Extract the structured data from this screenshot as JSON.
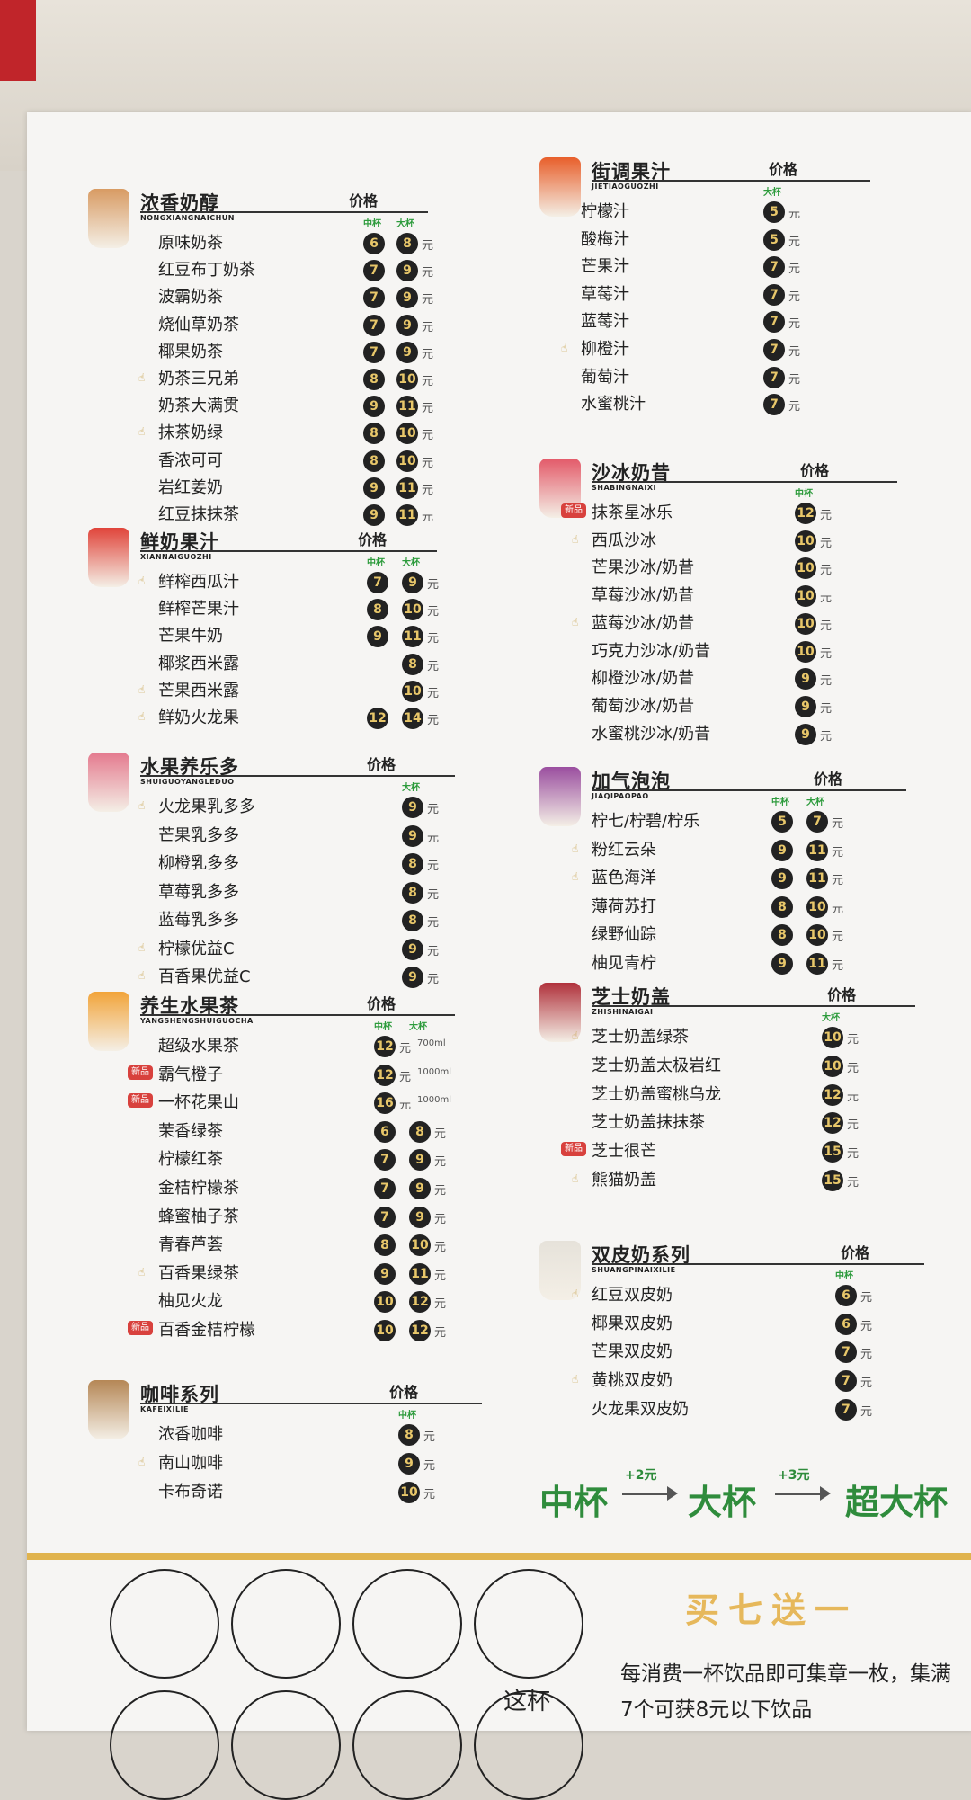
{
  "colors": {
    "badge_bg": "#222222",
    "badge_text": "#e8c76a",
    "green": "#2f8c3c",
    "gold": "#e0b34d",
    "new_tag": "#d8413d"
  },
  "sections": [
    {
      "id": "nongxiang",
      "title": "浓香奶醇",
      "pinyin": "NONGXIANGNAICHUN",
      "price_header": "价格",
      "sizes": [
        "中杯",
        "大杯"
      ],
      "thumb_color": "#d89b63",
      "items": [
        {
          "name": "原味奶茶",
          "prices": [
            "6",
            "8"
          ],
          "unit": "元"
        },
        {
          "name": "红豆布丁奶茶",
          "prices": [
            "7",
            "9"
          ],
          "unit": "元"
        },
        {
          "name": "波霸奶茶",
          "prices": [
            "7",
            "9"
          ],
          "unit": "元"
        },
        {
          "name": "烧仙草奶茶",
          "prices": [
            "7",
            "9"
          ],
          "unit": "元"
        },
        {
          "name": "椰果奶茶",
          "prices": [
            "7",
            "9"
          ],
          "unit": "元"
        },
        {
          "name": "奶茶三兄弟",
          "prices": [
            "8",
            "10"
          ],
          "unit": "元",
          "mark": "thumb"
        },
        {
          "name": "奶茶大满贯",
          "prices": [
            "9",
            "11"
          ],
          "unit": "元"
        },
        {
          "name": "抹茶奶绿",
          "prices": [
            "8",
            "10"
          ],
          "unit": "元",
          "mark": "thumb"
        },
        {
          "name": "香浓可可",
          "prices": [
            "8",
            "10"
          ],
          "unit": "元"
        },
        {
          "name": "岩红姜奶",
          "prices": [
            "9",
            "11"
          ],
          "unit": "元"
        },
        {
          "name": "红豆抹抹茶",
          "prices": [
            "9",
            "11"
          ],
          "unit": "元"
        }
      ]
    },
    {
      "id": "xiannai",
      "title": "鲜奶果汁",
      "pinyin": "XIANNAIGUOZHI",
      "price_header": "价格",
      "sizes": [
        "中杯",
        "大杯"
      ],
      "thumb_color": "#e0443a",
      "items": [
        {
          "name": "鲜榨西瓜汁",
          "prices": [
            "7",
            "9"
          ],
          "unit": "元",
          "mark": "thumb"
        },
        {
          "name": "鲜榨芒果汁",
          "prices": [
            "8",
            "10"
          ],
          "unit": "元"
        },
        {
          "name": "芒果牛奶",
          "prices": [
            "9",
            "11"
          ],
          "unit": "元"
        },
        {
          "name": "椰浆西米露",
          "prices": [
            "",
            "8"
          ],
          "unit": "元"
        },
        {
          "name": "芒果西米露",
          "prices": [
            "",
            "10"
          ],
          "unit": "元",
          "mark": "thumb"
        },
        {
          "name": "鲜奶火龙果",
          "prices": [
            "12",
            "14"
          ],
          "unit": "元",
          "mark": "thumb"
        }
      ]
    },
    {
      "id": "shuiguo",
      "title": "水果养乐多",
      "pinyin": "SHUIGUOYANGLEDUO",
      "price_header": "价格",
      "sizes": [
        "",
        "大杯"
      ],
      "thumb_color": "#e47a8e",
      "items": [
        {
          "name": "火龙果乳多多",
          "prices": [
            "",
            "9"
          ],
          "unit": "元",
          "mark": "thumb"
        },
        {
          "name": "芒果乳多多",
          "prices": [
            "",
            "9"
          ],
          "unit": "元"
        },
        {
          "name": "柳橙乳多多",
          "prices": [
            "",
            "8"
          ],
          "unit": "元"
        },
        {
          "name": "草莓乳多多",
          "prices": [
            "",
            "8"
          ],
          "unit": "元"
        },
        {
          "name": "蓝莓乳多多",
          "prices": [
            "",
            "8"
          ],
          "unit": "元"
        },
        {
          "name": "柠檬优益C",
          "prices": [
            "",
            "9"
          ],
          "unit": "元",
          "mark": "thumb"
        },
        {
          "name": "百香果优益C",
          "prices": [
            "",
            "9"
          ],
          "unit": "元",
          "mark": "thumb"
        }
      ]
    },
    {
      "id": "yangsheng",
      "title": "养生水果茶",
      "pinyin": "YANGSHENGSHUIGUOCHA",
      "price_header": "价格",
      "sizes": [
        "中杯",
        "大杯"
      ],
      "thumb_color": "#f2a43a",
      "items": [
        {
          "name": "超级水果茶",
          "prices": [
            "12",
            ""
          ],
          "unit": "元",
          "note": "700ml"
        },
        {
          "name": "霸气橙子",
          "prices": [
            "12",
            ""
          ],
          "unit": "元",
          "note": "1000ml",
          "mark": "new"
        },
        {
          "name": "一杯花果山",
          "prices": [
            "16",
            ""
          ],
          "unit": "元",
          "note": "1000ml",
          "mark": "new"
        },
        {
          "name": "茉香绿茶",
          "prices": [
            "6",
            "8"
          ],
          "unit": "元"
        },
        {
          "name": "柠檬红茶",
          "prices": [
            "7",
            "9"
          ],
          "unit": "元"
        },
        {
          "name": "金桔柠檬茶",
          "prices": [
            "7",
            "9"
          ],
          "unit": "元"
        },
        {
          "name": "蜂蜜柚子茶",
          "prices": [
            "7",
            "9"
          ],
          "unit": "元"
        },
        {
          "name": "青春芦荟",
          "prices": [
            "8",
            "10"
          ],
          "unit": "元"
        },
        {
          "name": "百香果绿茶",
          "prices": [
            "9",
            "11"
          ],
          "unit": "元",
          "mark": "thumb"
        },
        {
          "name": "柚见火龙",
          "prices": [
            "10",
            "12"
          ],
          "unit": "元"
        },
        {
          "name": "百香金桔柠檬",
          "prices": [
            "10",
            "12"
          ],
          "unit": "元",
          "mark": "new"
        }
      ]
    },
    {
      "id": "kafei",
      "title": "咖啡系列",
      "pinyin": "KAFEIXILIE",
      "price_header": "价格",
      "sizes": [
        "中杯",
        ""
      ],
      "thumb_color": "#b58756",
      "items": [
        {
          "name": "浓香咖啡",
          "prices": [
            "8",
            ""
          ],
          "unit": "元"
        },
        {
          "name": "南山咖啡",
          "prices": [
            "9",
            ""
          ],
          "unit": "元",
          "mark": "thumb"
        },
        {
          "name": "卡布奇诺",
          "prices": [
            "10",
            ""
          ],
          "unit": "元"
        }
      ]
    },
    {
      "id": "jietiao",
      "title": "街调果汁",
      "pinyin": "JIETIAOGUOZHI",
      "price_header": "价格",
      "sizes": [
        "",
        "大杯"
      ],
      "thumb_color": "#e85f2b",
      "items": [
        {
          "name": "柠檬汁",
          "prices": [
            "",
            "5"
          ],
          "unit": "元"
        },
        {
          "name": "酸梅汁",
          "prices": [
            "",
            "5"
          ],
          "unit": "元"
        },
        {
          "name": "芒果汁",
          "prices": [
            "",
            "7"
          ],
          "unit": "元"
        },
        {
          "name": "草莓汁",
          "prices": [
            "",
            "7"
          ],
          "unit": "元"
        },
        {
          "name": "蓝莓汁",
          "prices": [
            "",
            "7"
          ],
          "unit": "元"
        },
        {
          "name": "柳橙汁",
          "prices": [
            "",
            "7"
          ],
          "unit": "元",
          "mark": "thumb"
        },
        {
          "name": "葡萄汁",
          "prices": [
            "",
            "7"
          ],
          "unit": "元"
        },
        {
          "name": "水蜜桃汁",
          "prices": [
            "",
            "7"
          ],
          "unit": "元"
        }
      ]
    },
    {
      "id": "shabing",
      "title": "沙冰奶昔",
      "pinyin": "SHABINGNAIXI",
      "price_header": "价格",
      "sizes": [
        "",
        "中杯"
      ],
      "thumb_color": "#e35a69",
      "items": [
        {
          "name": "抹茶星冰乐",
          "prices": [
            "",
            "12"
          ],
          "unit": "元",
          "mark": "new"
        },
        {
          "name": "西瓜沙冰",
          "prices": [
            "",
            "10"
          ],
          "unit": "元",
          "mark": "thumb"
        },
        {
          "name": "芒果沙冰/奶昔",
          "prices": [
            "",
            "10"
          ],
          "unit": "元"
        },
        {
          "name": "草莓沙冰/奶昔",
          "prices": [
            "",
            "10"
          ],
          "unit": "元"
        },
        {
          "name": "蓝莓沙冰/奶昔",
          "prices": [
            "",
            "10"
          ],
          "unit": "元",
          "mark": "thumb"
        },
        {
          "name": "巧克力沙冰/奶昔",
          "prices": [
            "",
            "10"
          ],
          "unit": "元"
        },
        {
          "name": "柳橙沙冰/奶昔",
          "prices": [
            "",
            "9"
          ],
          "unit": "元"
        },
        {
          "name": "葡萄沙冰/奶昔",
          "prices": [
            "",
            "9"
          ],
          "unit": "元"
        },
        {
          "name": "水蜜桃沙冰/奶昔",
          "prices": [
            "",
            "9"
          ],
          "unit": "元"
        }
      ]
    },
    {
      "id": "jiaqi",
      "title": "加气泡泡",
      "pinyin": "JIAQIPAOPAO",
      "price_header": "价格",
      "sizes": [
        "中杯",
        "大杯"
      ],
      "thumb_color": "#9a4e9f",
      "items": [
        {
          "name": "柠七/柠碧/柠乐",
          "prices": [
            "5",
            "7"
          ],
          "unit": "元"
        },
        {
          "name": "粉红云朵",
          "prices": [
            "9",
            "11"
          ],
          "unit": "元",
          "mark": "thumb"
        },
        {
          "name": "蓝色海洋",
          "prices": [
            "9",
            "11"
          ],
          "unit": "元",
          "mark": "thumb"
        },
        {
          "name": "薄荷苏打",
          "prices": [
            "8",
            "10"
          ],
          "unit": "元"
        },
        {
          "name": "绿野仙踪",
          "prices": [
            "8",
            "10"
          ],
          "unit": "元"
        },
        {
          "name": "柚见青柠",
          "prices": [
            "9",
            "11"
          ],
          "unit": "元"
        }
      ]
    },
    {
      "id": "zhishi",
      "title": "芝士奶盖",
      "pinyin": "ZHISHINAIGAI",
      "price_header": "价格",
      "sizes": [
        "",
        "大杯"
      ],
      "thumb_color": "#b0323c",
      "items": [
        {
          "name": "芝士奶盖绿茶",
          "prices": [
            "",
            "10"
          ],
          "unit": "元",
          "mark": "thumb"
        },
        {
          "name": "芝士奶盖太极岩红",
          "prices": [
            "",
            "10"
          ],
          "unit": "元"
        },
        {
          "name": "芝士奶盖蜜桃乌龙",
          "prices": [
            "",
            "12"
          ],
          "unit": "元"
        },
        {
          "name": "芝士奶盖抹抹茶",
          "prices": [
            "",
            "12"
          ],
          "unit": "元"
        },
        {
          "name": "芝士很芒",
          "prices": [
            "",
            "15"
          ],
          "unit": "元",
          "mark": "new"
        },
        {
          "name": "熊猫奶盖",
          "prices": [
            "",
            "15"
          ],
          "unit": "元",
          "mark": "thumb"
        }
      ]
    },
    {
      "id": "shuangpi",
      "title": "双皮奶系列",
      "pinyin": "SHUANGPINAIXILIE",
      "price_header": "价格",
      "sizes": [
        "",
        "中杯"
      ],
      "thumb_color": "#e6e2da",
      "items": [
        {
          "name": "红豆双皮奶",
          "prices": [
            "",
            "6"
          ],
          "unit": "元",
          "mark": "thumb"
        },
        {
          "name": "椰果双皮奶",
          "prices": [
            "",
            "6"
          ],
          "unit": "元"
        },
        {
          "name": "芒果双皮奶",
          "prices": [
            "",
            "7"
          ],
          "unit": "元"
        },
        {
          "name": "黄桃双皮奶",
          "prices": [
            "",
            "7"
          ],
          "unit": "元",
          "mark": "thumb"
        },
        {
          "name": "火龙果双皮奶",
          "prices": [
            "",
            "7"
          ],
          "unit": "元"
        }
      ]
    }
  ],
  "cup_upgrade": {
    "medium": "中杯",
    "step1": "+2元",
    "large": "大杯",
    "step2": "+3元",
    "xlarge": "超大杯"
  },
  "promo": {
    "title": "买七送一",
    "desc": "每消费一杯饮品即可集章一枚，集满7个可获8元以下饮品",
    "stamp_text": "这杯"
  },
  "new_tag_label": "新品"
}
